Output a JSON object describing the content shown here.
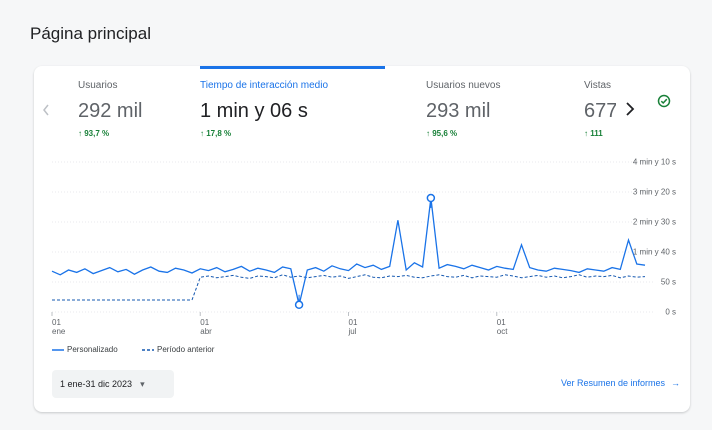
{
  "header": {
    "title": "Página principal"
  },
  "tabs": [
    {
      "label": "Usuarios",
      "value": "292 mil",
      "change": "↑ 93,7 %"
    },
    {
      "label": "Tiempo de interacción medio",
      "value": "1 min y 06 s",
      "change": "↑ 17,8 %"
    },
    {
      "label": "Usuarios nuevos",
      "value": "293 mil",
      "change": "↑ 95,6 %"
    },
    {
      "label": "Vistas",
      "value": "677",
      "change": "↑ 111"
    }
  ],
  "chart_data": {
    "type": "line",
    "categories": [
      "01 ene",
      null,
      null,
      null,
      null,
      null,
      null,
      null,
      null,
      null,
      null,
      null,
      null,
      null,
      null,
      null,
      null,
      null,
      "01 abr",
      null,
      null,
      null,
      null,
      null,
      null,
      null,
      null,
      null,
      null,
      null,
      null,
      null,
      null,
      null,
      null,
      null,
      "01 jul",
      null,
      null,
      null,
      null,
      null,
      null,
      null,
      null,
      null,
      null,
      null,
      null,
      null,
      null,
      null,
      null,
      null,
      "01 oct",
      null,
      null,
      null,
      null,
      null,
      null,
      null,
      null,
      null,
      null,
      null,
      null,
      null,
      null,
      null,
      null,
      null,
      null
    ],
    "series": [
      {
        "name": "Personalizado",
        "color": "#1a73e8",
        "dashed": false,
        "values": [
          68,
          62,
          70,
          66,
          72,
          64,
          69,
          74,
          67,
          71,
          63,
          70,
          75,
          68,
          66,
          73,
          70,
          65,
          72,
          69,
          74,
          67,
          71,
          76,
          68,
          73,
          70,
          66,
          75,
          72,
          12,
          70,
          74,
          68,
          77,
          72,
          69,
          80,
          74,
          78,
          71,
          76,
          153,
          70,
          82,
          75,
          190,
          73,
          79,
          76,
          72,
          78,
          74,
          70,
          76,
          73,
          71,
          112,
          74,
          70,
          68,
          73,
          71,
          69,
          66,
          72,
          70,
          68,
          74,
          71,
          120,
          80,
          78
        ]
      },
      {
        "name": "Período anterior",
        "color": "#1558b0",
        "dashed": true,
        "values": [
          20,
          20,
          20,
          20,
          20,
          20,
          20,
          20,
          20,
          20,
          20,
          20,
          20,
          20,
          20,
          20,
          20,
          20,
          58,
          60,
          57,
          59,
          61,
          58,
          56,
          60,
          59,
          57,
          62,
          58,
          60,
          57,
          59,
          61,
          58,
          60,
          56,
          59,
          62,
          58,
          57,
          60,
          59,
          61,
          58,
          57,
          60,
          62,
          59,
          58,
          61,
          57,
          60,
          59,
          58,
          62,
          60,
          57,
          59,
          61,
          58,
          60,
          57,
          59,
          62,
          58,
          60,
          59,
          61,
          57,
          60,
          58,
          59
        ]
      }
    ],
    "ylim": [
      0,
      250
    ],
    "yticks": [
      {
        "value": 0,
        "label": "0 s"
      },
      {
        "value": 50,
        "label": "50 s"
      },
      {
        "value": 100,
        "label": "1 min y 40 s"
      },
      {
        "value": 150,
        "label": "2 min y 30 s"
      },
      {
        "value": 200,
        "label": "3 min y 20 s"
      },
      {
        "value": 250,
        "label": "4 min y 10 s"
      }
    ],
    "grid": true
  },
  "footer": {
    "date_range": "1 ene-31 dic 2023",
    "link": "Ver Resumen de informes"
  }
}
